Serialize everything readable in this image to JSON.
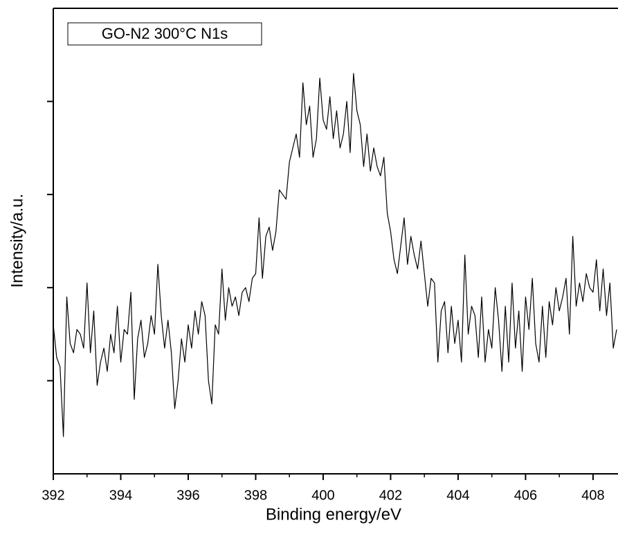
{
  "chart_data": {
    "type": "line",
    "annotation": "GO-N2 300°C N1s",
    "xlabel": "Binding energy/eV",
    "ylabel": "Intensity/a.u.",
    "xlim": [
      392,
      408.74
    ],
    "xticks": [
      392,
      394,
      396,
      398,
      400,
      402,
      404,
      406,
      408
    ],
    "ylim": [
      0,
      100
    ],
    "yticks": [
      20,
      40,
      60,
      80
    ],
    "series": [
      {
        "color": "#000000",
        "x": [
          392.0,
          392.1,
          392.2,
          392.3,
          392.4,
          392.5,
          392.6,
          392.7,
          392.8,
          392.9,
          393.0,
          393.1,
          393.2,
          393.3,
          393.4,
          393.5,
          393.6,
          393.7,
          393.8,
          393.9,
          394.0,
          394.1,
          394.2,
          394.3,
          394.4,
          394.5,
          394.6,
          394.7,
          394.8,
          394.9,
          395.0,
          395.1,
          395.2,
          395.3,
          395.4,
          395.5,
          395.6,
          395.7,
          395.8,
          395.9,
          396.0,
          396.1,
          396.2,
          396.3,
          396.4,
          396.5,
          396.6,
          396.7,
          396.8,
          396.9,
          397.0,
          397.1,
          397.2,
          397.3,
          397.4,
          397.5,
          397.6,
          397.7,
          397.8,
          397.9,
          398.0,
          398.1,
          398.2,
          398.3,
          398.4,
          398.5,
          398.6,
          398.7,
          398.8,
          398.9,
          399.0,
          399.1,
          399.2,
          399.3,
          399.4,
          399.5,
          399.6,
          399.7,
          399.8,
          399.9,
          400.0,
          400.1,
          400.2,
          400.3,
          400.4,
          400.5,
          400.6,
          400.7,
          400.8,
          400.9,
          401.0,
          401.1,
          401.2,
          401.3,
          401.4,
          401.5,
          401.6,
          401.7,
          401.8,
          401.9,
          402.0,
          402.1,
          402.2,
          402.3,
          402.4,
          402.5,
          402.6,
          402.7,
          402.8,
          402.9,
          403.0,
          403.1,
          403.2,
          403.3,
          403.4,
          403.5,
          403.6,
          403.7,
          403.8,
          403.9,
          404.0,
          404.1,
          404.2,
          404.3,
          404.4,
          404.5,
          404.6,
          404.7,
          404.8,
          404.9,
          405.0,
          405.1,
          405.2,
          405.3,
          405.4,
          405.5,
          405.6,
          405.7,
          405.8,
          405.9,
          406.0,
          406.1,
          406.2,
          406.3,
          406.4,
          406.5,
          406.6,
          406.7,
          406.8,
          406.9,
          407.0,
          407.1,
          407.2,
          407.3,
          407.4,
          407.5,
          407.6,
          407.7,
          407.8,
          407.9,
          408.0,
          408.1,
          408.2,
          408.3,
          408.4,
          408.5,
          408.6,
          408.7
        ],
        "values": [
          32,
          25,
          23,
          8,
          38,
          28,
          26,
          31,
          30,
          27,
          41,
          26,
          35,
          19,
          24,
          27,
          22,
          30,
          26,
          36,
          24,
          31,
          30,
          39,
          16,
          29,
          33,
          25,
          28,
          34,
          30,
          45,
          34,
          27,
          33,
          26,
          14,
          20,
          29,
          24,
          32,
          27,
          35,
          30,
          37,
          34,
          20,
          15,
          32,
          30,
          44,
          33,
          40,
          36,
          38,
          34,
          39,
          40,
          37,
          42,
          43,
          55,
          42,
          51,
          53,
          48,
          52,
          61,
          60,
          59,
          67,
          70,
          73,
          68,
          84,
          75,
          79,
          68,
          72,
          85,
          76,
          74,
          81,
          72,
          78,
          70,
          73,
          80,
          69,
          86,
          78,
          75,
          66,
          73,
          65,
          70,
          66,
          64,
          68,
          56,
          52,
          46,
          43,
          49,
          55,
          45,
          51,
          47,
          44,
          50,
          43,
          36,
          42,
          41,
          24,
          35,
          37,
          26,
          36,
          28,
          33,
          24,
          47,
          30,
          36,
          34,
          25,
          38,
          24,
          31,
          27,
          40,
          33,
          22,
          36,
          24,
          41,
          27,
          35,
          22,
          38,
          31,
          42,
          28,
          24,
          36,
          25,
          37,
          32,
          40,
          35,
          38,
          42,
          30,
          51,
          36,
          41,
          37,
          43,
          40,
          39,
          46,
          35,
          44,
          34,
          41,
          27,
          31
        ]
      }
    ]
  }
}
